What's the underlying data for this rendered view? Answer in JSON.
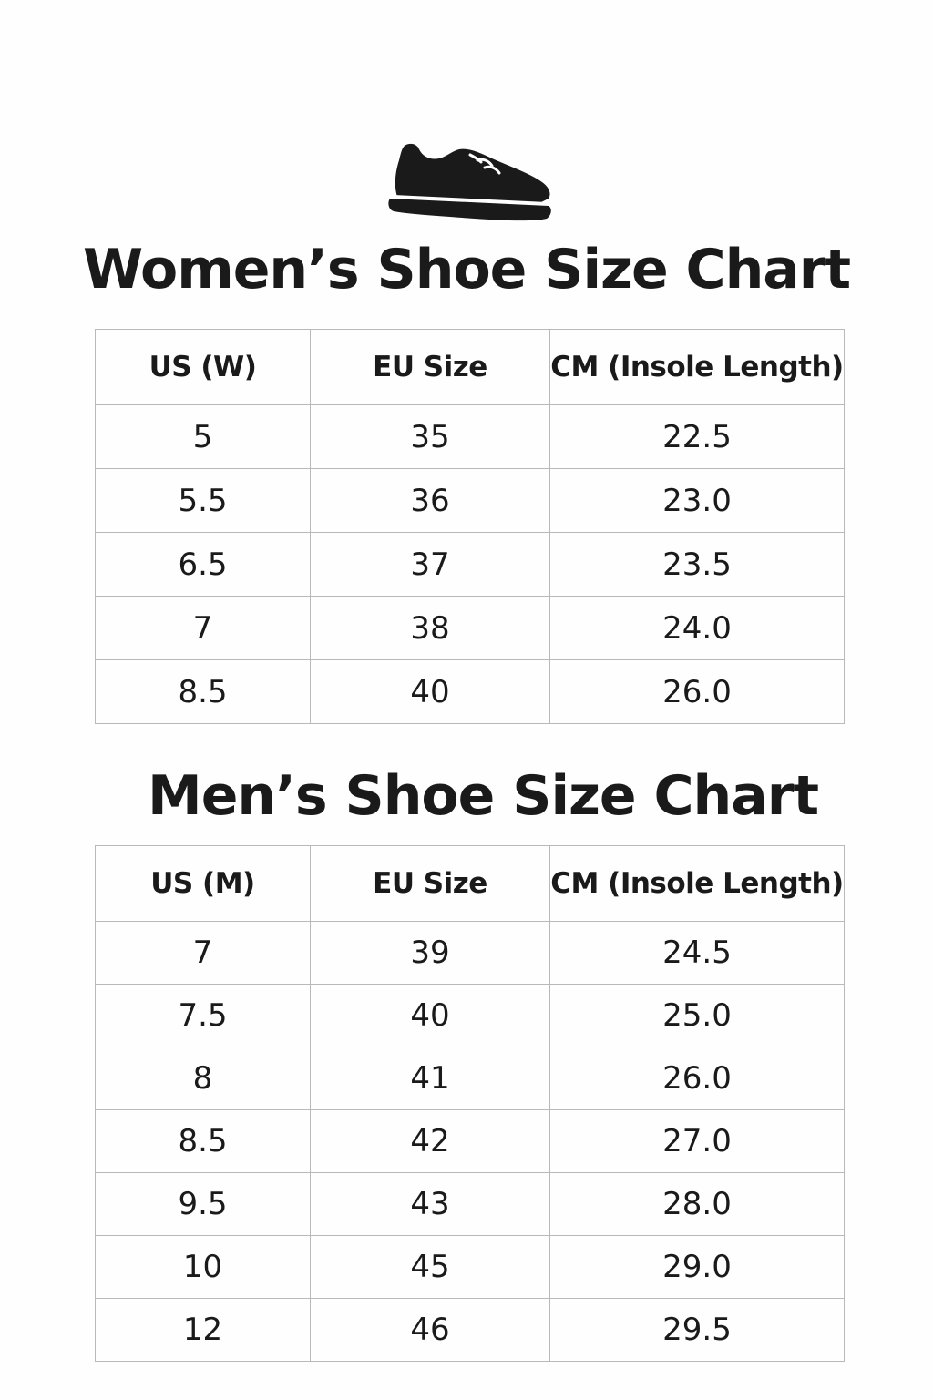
{
  "icons": {
    "header_icon": "shoe-icon"
  },
  "women": {
    "title": "Women’s Shoe Size Chart",
    "headers": [
      "US (W)",
      "EU Size",
      "CM (Insole Length)"
    ],
    "rows": [
      [
        "5",
        "35",
        "22.5"
      ],
      [
        "5.5",
        "36",
        "23.0"
      ],
      [
        "6.5",
        "37",
        "23.5"
      ],
      [
        "7",
        "38",
        "24.0"
      ],
      [
        "8.5",
        "40",
        "26.0"
      ]
    ]
  },
  "men": {
    "title": "Men’s Shoe Size Chart",
    "headers": [
      "US (M)",
      "EU Size",
      "CM (Insole Length)"
    ],
    "rows": [
      [
        "7",
        "39",
        "24.5"
      ],
      [
        "7.5",
        "40",
        "25.0"
      ],
      [
        "8",
        "41",
        "26.0"
      ],
      [
        "8.5",
        "42",
        "27.0"
      ],
      [
        "9.5",
        "43",
        "28.0"
      ],
      [
        "10",
        "45",
        "29.0"
      ],
      [
        "12",
        "46",
        "29.5"
      ]
    ]
  }
}
